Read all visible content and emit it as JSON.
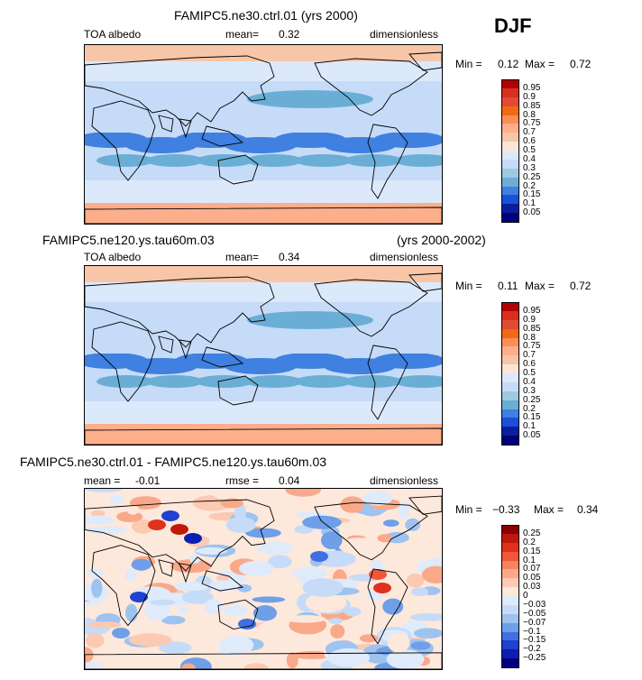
{
  "season": "DJF",
  "panels": [
    {
      "title": "FAMIPC5.ne30.ctrl.01 (yrs 2000)",
      "subtitle_right": "",
      "left_label": "TOA albedo",
      "stat_label": "mean=",
      "stat_value": "0.32",
      "units": "dimensionless",
      "min_label": "Min =",
      "min_value": "0.12",
      "max_label": "Max =",
      "max_value": "0.72",
      "levels": [
        "0.95",
        "0.9",
        "0.85",
        "0.8",
        "0.75",
        "0.7",
        "0.6",
        "0.5",
        "0.4",
        "0.3",
        "0.25",
        "0.2",
        "0.15",
        "0.1",
        "0.05"
      ],
      "colors": [
        "#b30000",
        "#d7301f",
        "#e34a33",
        "#f16913",
        "#fc8d59",
        "#fdae8b",
        "#f7c6a8",
        "#fde5d5",
        "#dce9fb",
        "#c6dbf7",
        "#9ecae1",
        "#6aaed6",
        "#3f80e0",
        "#1c50d8",
        "#0a1f9e",
        "#00007a"
      ]
    },
    {
      "title": "FAMIPC5.ne120.ys.tau60m.03",
      "subtitle_right": "(yrs 2000-2002)",
      "left_label": "TOA albedo",
      "stat_label": "mean=",
      "stat_value": "0.34",
      "units": "dimensionless",
      "min_label": "Min =",
      "min_value": "0.11",
      "max_label": "Max =",
      "max_value": "0.72",
      "levels": [
        "0.95",
        "0.9",
        "0.85",
        "0.8",
        "0.75",
        "0.7",
        "0.6",
        "0.5",
        "0.4",
        "0.3",
        "0.25",
        "0.2",
        "0.15",
        "0.1",
        "0.05"
      ],
      "colors": [
        "#b30000",
        "#d7301f",
        "#e34a33",
        "#f16913",
        "#fc8d59",
        "#fdae8b",
        "#f7c6a8",
        "#fde5d5",
        "#dce9fb",
        "#c6dbf7",
        "#9ecae1",
        "#6aaed6",
        "#3f80e0",
        "#1c50d8",
        "#0a1f9e",
        "#00007a"
      ]
    },
    {
      "title": "FAMIPC5.ne30.ctrl.01 - FAMIPC5.ne120.ys.tau60m.03",
      "subtitle_right": "",
      "left_label": "mean =",
      "left_value": "-0.01",
      "stat_label": "rmse =",
      "stat_value": "0.04",
      "units": "dimensionless",
      "min_label": "Min =",
      "min_value": "−0.33",
      "max_label": "Max =",
      "max_value": "0.34",
      "levels": [
        "0.25",
        "0.2",
        "0.15",
        "0.1",
        "0.07",
        "0.05",
        "0.03",
        "0",
        "−0.03",
        "−0.05",
        "−0.07",
        "−0.1",
        "−0.15",
        "−0.2",
        "−0.25"
      ],
      "colors": [
        "#8b0000",
        "#c0190b",
        "#e0301e",
        "#f2553a",
        "#f7845f",
        "#f9a98a",
        "#fcc9b2",
        "#fde8dc",
        "#dfeafb",
        "#c6dbf7",
        "#9dc3f0",
        "#6e9fe8",
        "#3f6fe0",
        "#1f40d0",
        "#0a1fb0",
        "#000080"
      ]
    }
  ]
}
